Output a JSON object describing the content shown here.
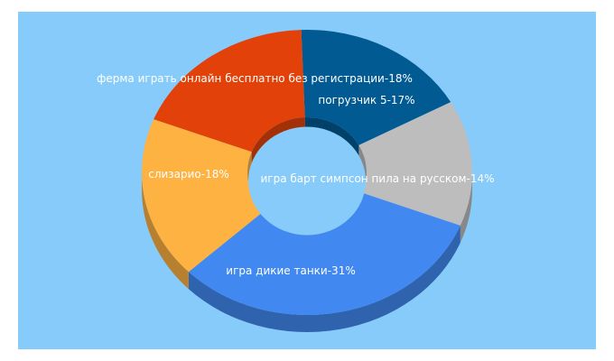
{
  "chart_data": {
    "type": "pie",
    "variant": "3d-donut",
    "title": "",
    "start_angle_deg": -92,
    "slices": [
      {
        "label": "погрузчик 5-17%",
        "value": 17,
        "color": "#015a92"
      },
      {
        "label": "игра барт симпсон пила на русском-14%",
        "value": 14,
        "color": "#bdbdbd"
      },
      {
        "label": "игра дикие танки-31%",
        "value": 31,
        "color": "#4189f0"
      },
      {
        "label": "слизарио-18%",
        "value": 18,
        "color": "#fdb242"
      },
      {
        "label": "ферма играть онлайн бесплатно без регистрации-18%",
        "value": 18,
        "color": "#e24209"
      }
    ],
    "background_color": "#87cbfa"
  }
}
